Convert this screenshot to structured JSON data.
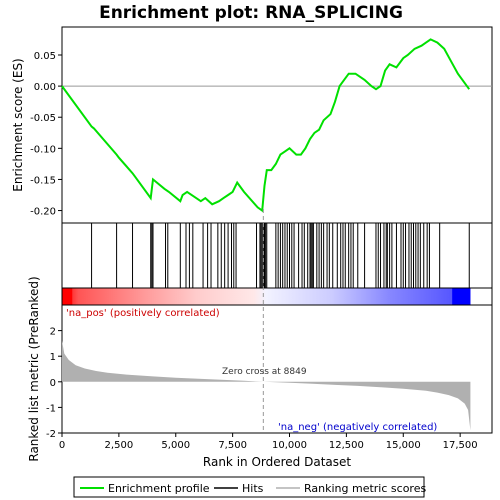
{
  "chart_data": {
    "type": "line",
    "title": "Enrichment plot: RNA_SPLICING",
    "panels": {
      "es": {
        "ylabel": "Enrichment score (ES)",
        "ylim": [
          -0.22,
          0.095
        ],
        "yticks": [
          "0.05",
          "0.00",
          "-0.05",
          "-0.10",
          "-0.15",
          "-0.20"
        ],
        "ytick_values": [
          0.05,
          0.0,
          -0.05,
          -0.1,
          -0.15,
          -0.2
        ],
        "series": [
          {
            "name": "Enrichment profile",
            "color": "#00e000",
            "x": [
              0,
              1300,
              1400,
              2400,
              2500,
              3100,
              3200,
              3900,
              4000,
              4500,
              4700,
              5200,
              5300,
              5500,
              5900,
              6100,
              6300,
              6600,
              6900,
              7100,
              7300,
              7500,
              7700,
              8000,
              8600,
              8800,
              8900,
              9000,
              9200,
              9400,
              9600,
              9800,
              10000,
              10300,
              10500,
              10700,
              10900,
              11100,
              11300,
              11500,
              11800,
              12000,
              12200,
              12400,
              12600,
              12900,
              13300,
              13600,
              13800,
              14000,
              14200,
              14400,
              14700,
              15000,
              15200,
              15500,
              15800,
              16000,
              16200,
              16500,
              16800,
              17100,
              17400,
              17900
            ],
            "y": [
              0.0,
              -0.065,
              -0.068,
              -0.11,
              -0.115,
              -0.14,
              -0.145,
              -0.18,
              -0.15,
              -0.165,
              -0.17,
              -0.185,
              -0.175,
              -0.17,
              -0.18,
              -0.185,
              -0.18,
              -0.19,
              -0.185,
              -0.18,
              -0.175,
              -0.17,
              -0.155,
              -0.17,
              -0.195,
              -0.2,
              -0.16,
              -0.135,
              -0.135,
              -0.125,
              -0.11,
              -0.105,
              -0.1,
              -0.11,
              -0.11,
              -0.1,
              -0.085,
              -0.075,
              -0.07,
              -0.055,
              -0.045,
              -0.025,
              0.0,
              0.01,
              0.02,
              0.02,
              0.01,
              0.0,
              -0.005,
              0.0,
              0.025,
              0.035,
              0.03,
              0.045,
              0.05,
              0.06,
              0.065,
              0.07,
              0.075,
              0.07,
              0.06,
              0.04,
              0.02,
              -0.005
            ]
          }
        ]
      },
      "hits": {
        "name": "Hits",
        "positions": [
          1300,
          2400,
          3100,
          3900,
          3950,
          4000,
          4550,
          4650,
          5200,
          5450,
          5600,
          5750,
          6200,
          6400,
          6550,
          6850,
          7000,
          7150,
          7300,
          7450,
          7550,
          7650,
          8550,
          8700,
          8750,
          8800,
          8850,
          8900,
          8950,
          9000,
          9400,
          9500,
          9600,
          9700,
          9800,
          9900,
          10000,
          10100,
          10200,
          10400,
          10550,
          10650,
          10800,
          10900,
          10950,
          11000,
          11050,
          11200,
          11300,
          11400,
          11500,
          11650,
          11750,
          11900,
          12100,
          12250,
          12350,
          12450,
          12600,
          12700,
          12800,
          13000,
          13300,
          13800,
          13900,
          14000,
          14150,
          14250,
          14300,
          14400,
          14500,
          14700,
          14900,
          15000,
          15100,
          15250,
          15350,
          15450,
          15550,
          15650,
          15750,
          15900,
          16050,
          16150,
          16600,
          17900
        ]
      },
      "ranked_metric": {
        "name": "Ranking metric scores",
        "ylabel": "Ranked list metric (PreRanked)",
        "ylim": [
          -2,
          3
        ],
        "yticks": [
          "2",
          "1",
          "0",
          "-1",
          "-2"
        ],
        "ytick_values": [
          2,
          1,
          0,
          -1,
          -2
        ],
        "x": [
          0,
          100,
          300,
          600,
          1000,
          1500,
          2000,
          3000,
          4000,
          5000,
          6000,
          7000,
          8000,
          8849,
          10000,
          11000,
          12000,
          13000,
          14000,
          15000,
          16000,
          16500,
          17000,
          17400,
          17700,
          17850,
          17950
        ],
        "y": [
          1.6,
          1.1,
          0.85,
          0.65,
          0.52,
          0.42,
          0.35,
          0.27,
          0.21,
          0.16,
          0.12,
          0.08,
          0.04,
          0.0,
          -0.04,
          -0.08,
          -0.12,
          -0.16,
          -0.21,
          -0.27,
          -0.35,
          -0.42,
          -0.52,
          -0.65,
          -0.85,
          -1.1,
          -1.9
        ]
      }
    },
    "xlabel": "Rank in Ordered Dataset",
    "xlim": [
      0,
      18900
    ],
    "xticks": [
      "0",
      "2,500",
      "5,000",
      "7,500",
      "10,000",
      "12,500",
      "15,000",
      "17,500"
    ],
    "xtick_values": [
      0,
      2500,
      5000,
      7500,
      10000,
      12500,
      15000,
      17500
    ],
    "zero_cross": 8849,
    "annotations": {
      "pos_label": "'na_pos' (positively correlated)",
      "neg_label": "'na_neg' (negatively correlated)",
      "zero_cross_label": "Zero cross at 8849"
    },
    "legend": {
      "placement": "bottom",
      "entries": [
        "Enrichment profile",
        "Hits",
        "Ranking metric scores"
      ]
    },
    "colors": {
      "enrichment": "#00e000",
      "hits": "#000000",
      "metric_fill": "#b0b0b0",
      "pos_text": "#cc0000",
      "neg_text": "#0000cc",
      "bar_red": "#ff0000",
      "bar_blue": "#0000ff"
    }
  }
}
